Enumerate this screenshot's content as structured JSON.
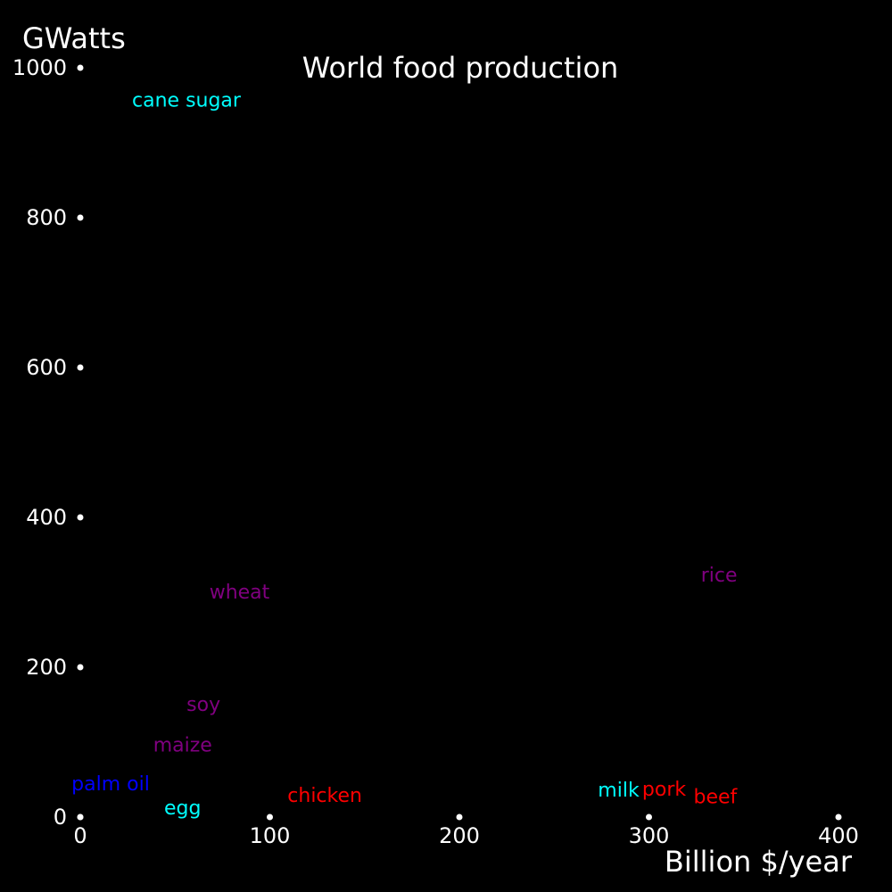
{
  "chart_data": {
    "type": "scatter",
    "title": "World food production",
    "xlabel": "Billion $/year",
    "ylabel": "GWatts",
    "xlim": [
      0,
      400
    ],
    "ylim": [
      0,
      1000
    ],
    "x_ticks": [
      0,
      100,
      200,
      300,
      400
    ],
    "y_ticks": [
      0,
      200,
      400,
      600,
      800,
      1000
    ],
    "grid": false,
    "points": [
      {
        "label": "cane sugar",
        "x": 56,
        "y": 958,
        "color": "#00ffff"
      },
      {
        "label": "rice",
        "x": 337,
        "y": 324,
        "color": "#800080"
      },
      {
        "label": "wheat",
        "x": 84,
        "y": 301,
        "color": "#800080"
      },
      {
        "label": "soy",
        "x": 65,
        "y": 151,
        "color": "#800080"
      },
      {
        "label": "maize",
        "x": 54,
        "y": 97,
        "color": "#800080"
      },
      {
        "label": "palm oil",
        "x": 16,
        "y": 45,
        "color": "#0000ff"
      },
      {
        "label": "chicken",
        "x": 129,
        "y": 30,
        "color": "#ff0000"
      },
      {
        "label": "milk",
        "x": 284,
        "y": 37,
        "color": "#00ffff"
      },
      {
        "label": "pork",
        "x": 308,
        "y": 38,
        "color": "#ff0000"
      },
      {
        "label": "beef",
        "x": 335,
        "y": 28,
        "color": "#ff0000"
      },
      {
        "label": "egg",
        "x": 54,
        "y": 13,
        "color": "#00ffff"
      }
    ]
  }
}
